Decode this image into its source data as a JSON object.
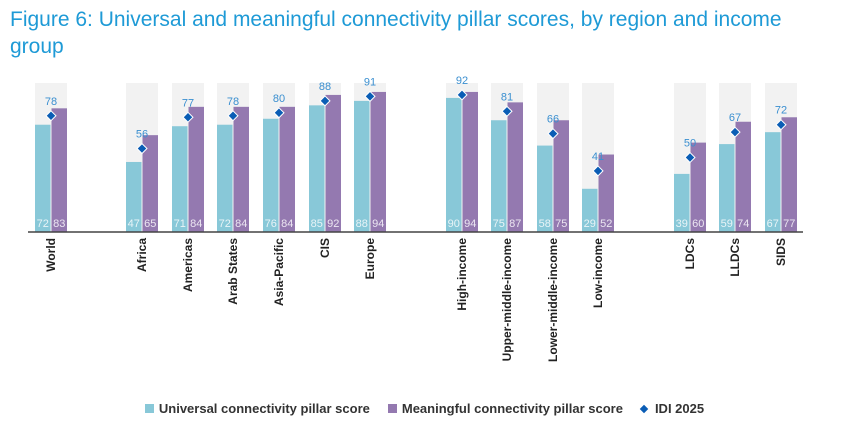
{
  "title": "Figure 6: Universal and meaningful connectivity pillar scores, by region and income group",
  "chart_data": {
    "type": "bar",
    "title": "Figure 6: Universal and meaningful connectivity pillar scores, by region and income group",
    "categories": [
      "World",
      "Africa",
      "Americas",
      "Arab States",
      "Asia-Pacific",
      "CIS",
      "Europe",
      "High-income",
      "Upper-middle-income",
      "Lower-middle-income",
      "Low-income",
      "LDCs",
      "LLDCs",
      "SIDS"
    ],
    "groups": [
      [
        "World"
      ],
      [
        "Africa",
        "Americas",
        "Arab States",
        "Asia-Pacific",
        "CIS",
        "Europe"
      ],
      [
        "High-income",
        "Upper-middle-income",
        "Lower-middle-income",
        "Low-income"
      ],
      [
        "LDCs",
        "LLDCs",
        "SIDS"
      ]
    ],
    "ylim": [
      0,
      100
    ],
    "series": [
      {
        "name": "Universal connectivity pillar score",
        "color": "#88c8d8",
        "values": [
          72,
          47,
          71,
          72,
          76,
          85,
          88,
          90,
          75,
          58,
          29,
          39,
          59,
          67
        ]
      },
      {
        "name": "Meaningful connectivity pillar score",
        "color": "#9479b0",
        "values": [
          83,
          65,
          84,
          84,
          84,
          92,
          94,
          94,
          87,
          75,
          52,
          60,
          74,
          77
        ]
      },
      {
        "name": "IDI 2025",
        "type": "marker",
        "color": "#0a5db5",
        "values": [
          78,
          56,
          77,
          78,
          80,
          88,
          91,
          92,
          81,
          66,
          41,
          50,
          67,
          72
        ]
      }
    ],
    "background_bar_color": "#f2f2f2",
    "legend": "bottom"
  }
}
